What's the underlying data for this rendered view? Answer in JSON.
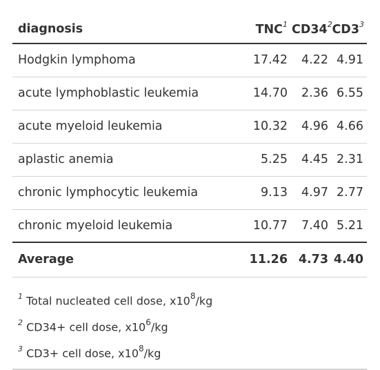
{
  "table": {
    "columns": [
      {
        "label": "diagnosis",
        "mark": ""
      },
      {
        "label": "TNC",
        "mark": "1"
      },
      {
        "label": "CD34",
        "mark": "2"
      },
      {
        "label": "CD3",
        "mark": "3"
      }
    ],
    "rows": [
      {
        "diagnosis": "Hodgkin lymphoma",
        "tnc": "17.42",
        "cd34": "4.22",
        "cd3": "4.91"
      },
      {
        "diagnosis": "acute lymphoblastic leukemia",
        "tnc": "14.70",
        "cd34": "2.36",
        "cd3": "6.55"
      },
      {
        "diagnosis": "acute myeloid leukemia",
        "tnc": "10.32",
        "cd34": "4.96",
        "cd3": "4.66"
      },
      {
        "diagnosis": "aplastic anemia",
        "tnc": "5.25",
        "cd34": "4.45",
        "cd3": "2.31"
      },
      {
        "diagnosis": "chronic lymphocytic leukemia",
        "tnc": "9.13",
        "cd34": "4.97",
        "cd3": "2.77"
      },
      {
        "diagnosis": "chronic myeloid leukemia",
        "tnc": "10.77",
        "cd34": "7.40",
        "cd3": "5.21"
      }
    ],
    "summary": {
      "label": "Average",
      "tnc": "11.26",
      "cd34": "4.73",
      "cd3": "4.40"
    }
  },
  "footnotes": [
    {
      "mark": "1",
      "text_before": "Total nucleated cell dose, x10",
      "exponent": "8",
      "text_after": "/kg"
    },
    {
      "mark": "2",
      "text_before": "CD34+ cell dose, x10",
      "exponent": "6",
      "text_after": "/kg"
    },
    {
      "mark": "3",
      "text_before": "CD3+ cell dose, x10",
      "exponent": "8",
      "text_after": "/kg"
    }
  ],
  "colors": {
    "text": "#333333",
    "rule_strong": "#333333",
    "rule_light": "#d3d3d3"
  }
}
